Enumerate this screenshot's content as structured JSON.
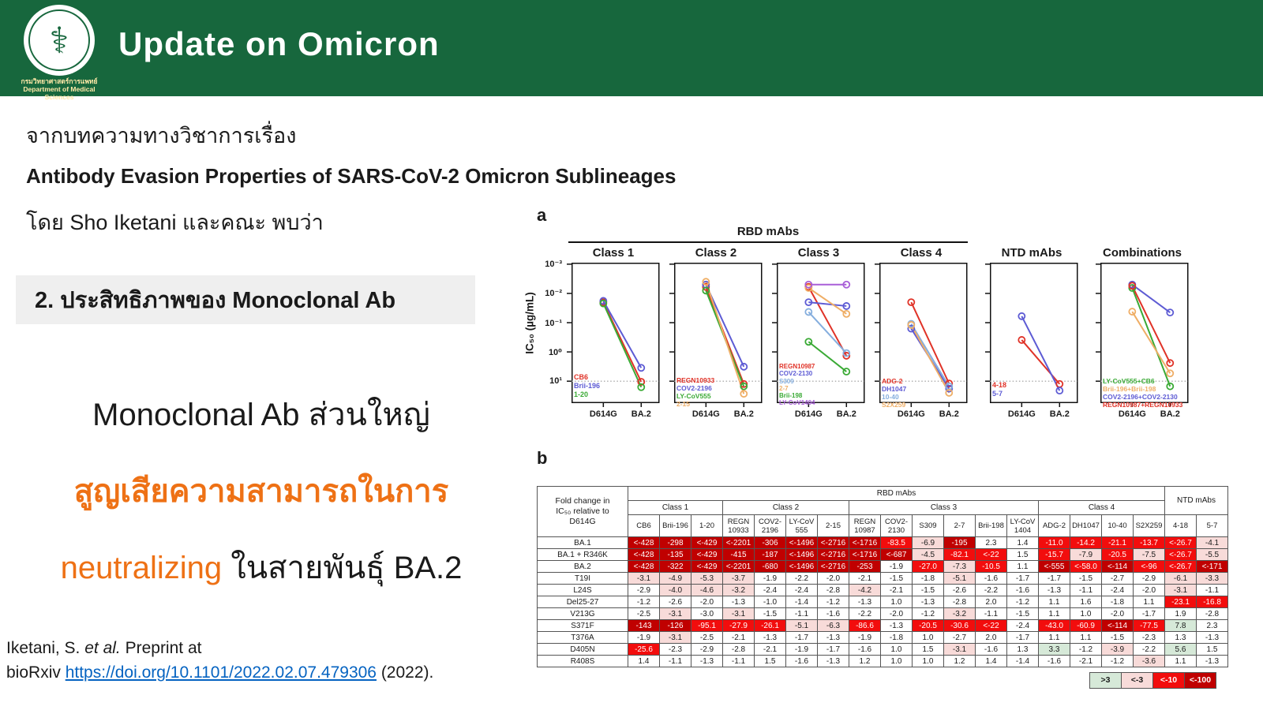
{
  "header": {
    "title": "Update on Omicron",
    "bg_color": "#17673d",
    "logo_caption_line1": "กรมวิทยาศาสตร์การแพทย์",
    "logo_caption_line2": "Department of Medical Sciences"
  },
  "intro": {
    "from_line": "จากบทความทางวิชาการเรื่อง",
    "paper_title": "Antibody Evasion Properties of SARS-CoV-2 Omicron Sublineages",
    "byline": "โดย Sho Iketani และคณะ พบว่า"
  },
  "section_box": {
    "label": "2. ประสิทธิภาพของ Monoclonal Ab",
    "bg_color": "#efefef"
  },
  "statement": {
    "line1": "Monoclonal Ab ส่วนใหญ่",
    "line2": "สูญเสียความสามารถในการ",
    "line3_orange": "neutralizing",
    "line3_black": " ในสายพันธุ์ BA.2",
    "orange_color": "#ee7115"
  },
  "citation": {
    "part1": "Iketani, S. ",
    "part2": "et al.",
    "part3": " Preprint at",
    "part4": "bioRxiv ",
    "link_text": "https://doi.org/10.1101/2022.02.07.479306",
    "part5": " (2022).",
    "link_color": "#0563c1"
  },
  "figure": {
    "panel_a_label": "a",
    "panel_b_label": "b",
    "rbd_group_label": "RBD mAbs",
    "y_axis_label": "IC₅₀ (µg/mL)",
    "y_ticks": [
      "10⁻³",
      "10⁻²",
      "10⁻¹",
      "10⁰",
      "10¹"
    ],
    "x_labels": [
      "D614G",
      "BA.2"
    ],
    "limit_line_value": 10
  },
  "chart_data": [
    {
      "type": "line",
      "title": "Class 1",
      "x": [
        "D614G",
        "BA.2"
      ],
      "ylabel": "IC50 (µg/mL)",
      "y_scale": "log inverted, 1e-3 top to 10 bottom, dashed limit at 10",
      "series": [
        {
          "name": "CB6",
          "color": "#e03227",
          "values": [
            0.02,
            10.5
          ]
        },
        {
          "name": "Brii-196",
          "color": "#5d5bd4",
          "values": [
            0.018,
            3.5
          ]
        },
        {
          "name": "1-20",
          "color": "#3aaa35",
          "values": [
            0.022,
            16
          ]
        }
      ]
    },
    {
      "type": "line",
      "title": "Class 2",
      "x": [
        "D614G",
        "BA.2"
      ],
      "series": [
        {
          "name": "REGN10933",
          "color": "#e03227",
          "values": [
            0.006,
            12.5
          ]
        },
        {
          "name": "COV2-2196",
          "color": "#5d5bd4",
          "values": [
            0.005,
            3.2
          ]
        },
        {
          "name": "LY-CoV555",
          "color": "#3aaa35",
          "values": [
            0.008,
            15
          ]
        },
        {
          "name": "2-15",
          "color": "#efae66",
          "values": [
            0.004,
            27
          ]
        }
      ]
    },
    {
      "type": "line",
      "title": "Class 3",
      "x": [
        "D614G",
        "BA.2"
      ],
      "series": [
        {
          "name": "REGN10987",
          "color": "#e03227",
          "values": [
            0.006,
            1.35
          ]
        },
        {
          "name": "COV2-2130",
          "color": "#5d5bd4",
          "values": [
            0.02,
            0.027
          ]
        },
        {
          "name": "S309",
          "color": "#85aede",
          "values": [
            0.043,
            1.1
          ]
        },
        {
          "name": "2-7",
          "color": "#efae66",
          "values": [
            0.0065,
            0.05
          ]
        },
        {
          "name": "Brii-198",
          "color": "#3aaa35",
          "values": [
            0.45,
            4.7
          ]
        },
        {
          "name": "LY-CoV1404",
          "color": "#a95fd8",
          "values": [
            0.005,
            0.005
          ]
        }
      ]
    },
    {
      "type": "line",
      "title": "Class 4",
      "x": [
        "D614G",
        "BA.2"
      ],
      "series": [
        {
          "name": "ADG-2",
          "color": "#e03227",
          "values": [
            0.02,
            12
          ]
        },
        {
          "name": "DH1047",
          "color": "#5d5bd4",
          "values": [
            0.16,
            18
          ]
        },
        {
          "name": "10-40",
          "color": "#85aede",
          "values": [
            0.11,
            15
          ]
        },
        {
          "name": "S2X259",
          "color": "#efae66",
          "values": [
            0.12,
            25
          ]
        }
      ]
    },
    {
      "type": "line",
      "title": "NTD mAbs",
      "x": [
        "D614G",
        "BA.2"
      ],
      "series": [
        {
          "name": "4-18",
          "color": "#e03227",
          "values": [
            0.39,
            12.5
          ]
        },
        {
          "name": "5-7",
          "color": "#5d5bd4",
          "values": [
            0.06,
            21
          ]
        }
      ]
    },
    {
      "type": "line",
      "title": "Combinations",
      "x": [
        "D614G",
        "BA.2"
      ],
      "series": [
        {
          "name": "LY-CoV555+CB6",
          "color": "#3aaa35",
          "values": [
            0.0065,
            15
          ]
        },
        {
          "name": "Brii-196+Brii-198",
          "color": "#efae66",
          "values": [
            0.042,
            5.4
          ]
        },
        {
          "name": "COV2-2196+COV2-2130",
          "color": "#5d5bd4",
          "values": [
            0.005,
            0.045
          ]
        },
        {
          "name": "REGN10987+REGN10933",
          "color": "#e03227",
          "values": [
            0.0055,
            2.4
          ]
        }
      ]
    }
  ],
  "table": {
    "corner_header": "Fold change in\nIC₅₀ relative to\nD614G",
    "group_rbd": "RBD mAbs",
    "group_ntd": "NTD mAbs",
    "classes": [
      {
        "label": "Class 1",
        "span": 3
      },
      {
        "label": "Class 2",
        "span": 4
      },
      {
        "label": "Class 3",
        "span": 6
      },
      {
        "label": "Class 4",
        "span": 4
      }
    ],
    "columns": [
      "CB6",
      "Brii-196",
      "1-20",
      "REGN\n10933",
      "COV2-\n2196",
      "LY-CoV\n555",
      "2-15",
      "REGN\n10987",
      "COV2-\n2130",
      "S309",
      "2-7",
      "Brii-198",
      "LY-CoV\n1404",
      "ADG-2",
      "DH1047",
      "10-40",
      "S2X259",
      "4-18",
      "5-7"
    ],
    "rows": [
      {
        "label": "BA.1",
        "values": [
          "<-428",
          "-298",
          "<-429",
          "<-2201",
          "-306",
          "<-1496",
          "<-2716",
          "<-1716",
          "-83.5",
          "-6.9",
          "-195",
          "2.3",
          "1.4",
          "-11.0",
          "-14.2",
          "-21.1",
          "-13.7",
          "<-26.7",
          "-4.1"
        ]
      },
      {
        "label": "BA.1 + R346K",
        "values": [
          "<-428",
          "-135",
          "<-429",
          "-415",
          "-187",
          "<-1496",
          "<-2716",
          "<-1716",
          "<-687",
          "-4.5",
          "-82.1",
          "<-22",
          "1.5",
          "-15.7",
          "-7.9",
          "-20.5",
          "-7.5",
          "<-26.7",
          "-5.5"
        ]
      },
      {
        "label": "BA.2",
        "values": [
          "<-428",
          "-322",
          "<-429",
          "<-2201",
          "-680",
          "<-1496",
          "<-2716",
          "-253",
          "-1.9",
          "-27.0",
          "-7.3",
          "-10.5",
          "1.1",
          "<-555",
          "<-58.0",
          "<-114",
          "<-96",
          "<-26.7",
          "<-171"
        ]
      },
      {
        "label": "T19I",
        "values": [
          "-3.1",
          "-4.9",
          "-5.3",
          "-3.7",
          "-1.9",
          "-2.2",
          "-2.0",
          "-2.1",
          "-1.5",
          "-1.8",
          "-5.1",
          "-1.6",
          "-1.7",
          "-1.7",
          "-1.5",
          "-2.7",
          "-2.9",
          "-6.1",
          "-3.3"
        ]
      },
      {
        "label": "L24S",
        "values": [
          "-2.9",
          "-4.0",
          "-4.6",
          "-3.2",
          "-2.4",
          "-2.4",
          "-2.8",
          "-4.2",
          "-2.1",
          "-1.5",
          "-2.6",
          "-2.2",
          "-1.6",
          "-1.3",
          "-1.1",
          "-2.4",
          "-2.0",
          "-3.1",
          "-1.1"
        ]
      },
      {
        "label": "Del25-27",
        "values": [
          "-1.2",
          "-2.6",
          "-2.0",
          "-1.3",
          "-1.0",
          "-1.4",
          "-1.2",
          "-1.3",
          "1.0",
          "-1.3",
          "-2.8",
          "2.0",
          "-1.2",
          "1.1",
          "1.6",
          "-1.8",
          "1.1",
          "-23.1",
          "-16.8"
        ]
      },
      {
        "label": "V213G",
        "values": [
          "-2.5",
          "-3.1",
          "-3.0",
          "-3.1",
          "-1.5",
          "-1.1",
          "-1.6",
          "-2.2",
          "-2.0",
          "-1.2",
          "-3.2",
          "-1.1",
          "-1.5",
          "1.1",
          "1.0",
          "-2.0",
          "-1.7",
          "1.9",
          "-2.8"
        ]
      },
      {
        "label": "S371F",
        "values": [
          "-143",
          "-126",
          "-95.1",
          "-27.9",
          "-26.1",
          "-5.1",
          "-6.3",
          "-86.6",
          "-1.3",
          "-20.5",
          "-30.6",
          "<-22",
          "-2.4",
          "-43.0",
          "-60.9",
          "<-114",
          "-77.5",
          "7.8",
          "2.3"
        ]
      },
      {
        "label": "T376A",
        "values": [
          "-1.9",
          "-3.1",
          "-2.5",
          "-2.1",
          "-1.3",
          "-1.7",
          "-1.3",
          "-1.9",
          "-1.8",
          "1.0",
          "-2.7",
          "2.0",
          "-1.7",
          "1.1",
          "1.1",
          "-1.5",
          "-2.3",
          "1.3",
          "-1.3"
        ]
      },
      {
        "label": "D405N",
        "values": [
          "-25.6",
          "-2.3",
          "-2.9",
          "-2.8",
          "-2.1",
          "-1.9",
          "-1.7",
          "-1.6",
          "1.0",
          "1.5",
          "-3.1",
          "-1.6",
          "1.3",
          "3.3",
          "-1.2",
          "-3.9",
          "-2.2",
          "5.6",
          "1.5"
        ]
      },
      {
        "label": "R408S",
        "values": [
          "1.4",
          "-1.1",
          "-1.3",
          "-1.1",
          "1.5",
          "-1.6",
          "-1.3",
          "1.2",
          "1.0",
          "1.0",
          "1.2",
          "1.4",
          "-1.4",
          "-1.6",
          "-2.1",
          "-1.2",
          "-3.6",
          "1.1",
          "-1.3"
        ]
      }
    ],
    "colors": {
      "green": "#d6e9d8",
      "pink": "#f8dbd9",
      "red": "#f20d0d",
      "dark_red": "#c00000",
      "light_text": "#1a1a1a",
      "white_text": "#ffffff"
    },
    "legend": [
      {
        "label": ">3",
        "type": "green"
      },
      {
        "label": "<-3",
        "type": "pink"
      },
      {
        "label": "<-10",
        "type": "red"
      },
      {
        "label": "<-100",
        "type": "dark_red"
      }
    ]
  }
}
